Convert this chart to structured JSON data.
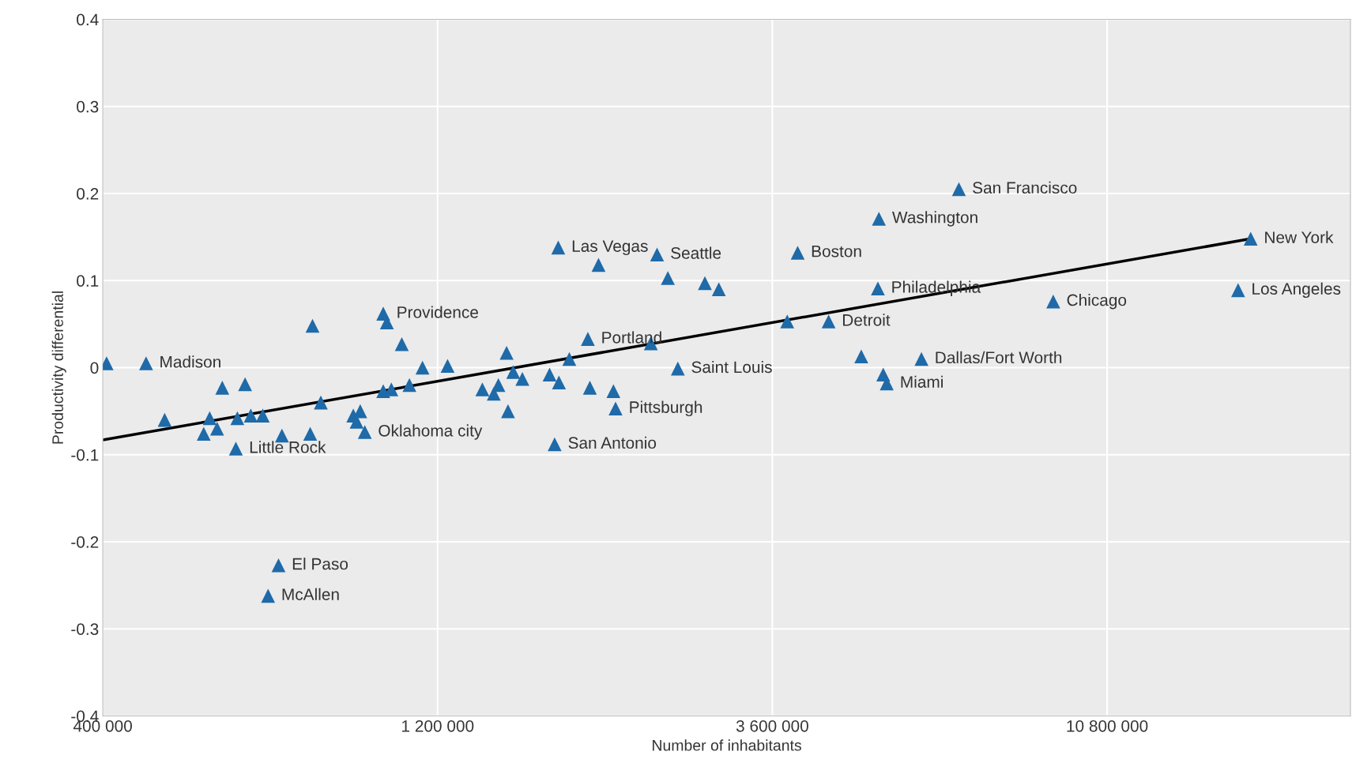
{
  "chart_data": {
    "type": "scatter",
    "xlabel": "Number of inhabitants",
    "ylabel": "Productivity differential",
    "log": "x",
    "grid": true,
    "marker": "triangle",
    "xlim": [
      400000,
      24000000
    ],
    "xticks": [
      {
        "value": 400000,
        "label": "400 000"
      },
      {
        "value": 1200000,
        "label": "1 200 000"
      },
      {
        "value": 3600000,
        "label": "3 600 000"
      },
      {
        "value": 10800000,
        "label": "10 800 000"
      }
    ],
    "ylim": [
      -0.4,
      0.4
    ],
    "yticks": [
      -0.4,
      -0.3,
      -0.2,
      -0.1,
      0,
      0.1,
      0.2,
      0.3,
      0.4
    ],
    "series": [
      {
        "color": "#1f6aa8",
        "x": [
          405000,
          461000,
          490000,
          557000,
          568000,
          582000,
          592000,
          622000,
          619000,
          638000,
          650000,
          676000,
          720000,
          712000,
          688000,
          790000,
          796000,
          818000,
          910000,
          920000,
          931000,
          945000,
          1004000,
          1016000,
          1004000,
          1031000,
          1067000,
          1094000,
          1142000,
          1240000,
          1390000,
          1443000,
          1465000,
          1505000,
          1512000,
          1538000,
          1585000,
          1733000,
          1762000,
          1787000,
          1783000,
          1849000,
          2035000,
          1965000,
          1978000,
          2137000,
          2152000,
          2416000,
          2466000,
          2555000,
          2640000,
          2885000,
          3020000,
          3780000,
          3912000,
          4330000,
          4820000,
          5107000,
          5090000,
          5180000,
          5240000,
          5872000,
          6640000,
          9050000,
          16600000,
          17300000
        ],
        "values": [
          0.005,
          0.005,
          -0.06,
          -0.076,
          -0.058,
          -0.07,
          -0.023,
          -0.058,
          -0.093,
          -0.019,
          -0.055,
          -0.055,
          -0.078,
          -0.227,
          -0.262,
          -0.076,
          0.048,
          -0.04,
          -0.055,
          -0.062,
          -0.05,
          -0.074,
          0.062,
          0.052,
          -0.027,
          -0.025,
          0.027,
          -0.02,
          0.0,
          0.002,
          -0.025,
          -0.03,
          -0.02,
          0.017,
          -0.05,
          -0.005,
          -0.013,
          -0.008,
          -0.088,
          -0.017,
          0.138,
          0.01,
          0.118,
          0.033,
          -0.023,
          -0.027,
          -0.047,
          0.028,
          0.13,
          0.103,
          -0.001,
          0.097,
          0.09,
          0.053,
          0.132,
          0.053,
          0.013,
          0.171,
          0.091,
          -0.008,
          -0.018,
          0.01,
          0.205,
          0.076,
          0.089,
          0.148
        ]
      },
      {
        "type": "line",
        "color": "#000000",
        "marker": "none",
        "x": [
          400000,
          17300000
        ],
        "values": [
          -0.083,
          0.148
        ]
      }
    ],
    "annotations": [
      {
        "text": "Madison",
        "x": 461000,
        "y": 0.005
      },
      {
        "text": "Little Rock",
        "x": 619000,
        "y": -0.093
      },
      {
        "text": "El Paso",
        "x": 712000,
        "y": -0.227
      },
      {
        "text": "McAllen",
        "x": 688000,
        "y": -0.262
      },
      {
        "text": "Oklahoma city",
        "x": 945000,
        "y": -0.074
      },
      {
        "text": "Providence",
        "x": 1004000,
        "y": 0.062
      },
      {
        "text": "San Antonio",
        "x": 1762000,
        "y": -0.088
      },
      {
        "text": "Las Vegas",
        "x": 1783000,
        "y": 0.138
      },
      {
        "text": "Portland",
        "x": 1965000,
        "y": 0.033
      },
      {
        "text": "Pittsburgh",
        "x": 2152000,
        "y": -0.047
      },
      {
        "text": "Seattle",
        "x": 2466000,
        "y": 0.13
      },
      {
        "text": "Saint Louis",
        "x": 2640000,
        "y": -0.001
      },
      {
        "text": "Boston",
        "x": 3912000,
        "y": 0.132
      },
      {
        "text": "Detroit",
        "x": 4330000,
        "y": 0.053
      },
      {
        "text": "Washington",
        "x": 5107000,
        "y": 0.171
      },
      {
        "text": "Philadelphia",
        "x": 5090000,
        "y": 0.091
      },
      {
        "text": "Miami",
        "x": 5240000,
        "y": -0.018
      },
      {
        "text": "Dallas/Fort Worth",
        "x": 5872000,
        "y": 0.01
      },
      {
        "text": "San Francisco",
        "x": 6640000,
        "y": 0.205
      },
      {
        "text": "Chicago",
        "x": 9050000,
        "y": 0.076
      },
      {
        "text": "Los Angeles",
        "x": 16600000,
        "y": 0.089
      },
      {
        "text": "New York",
        "x": 17300000,
        "y": 0.148
      }
    ]
  }
}
